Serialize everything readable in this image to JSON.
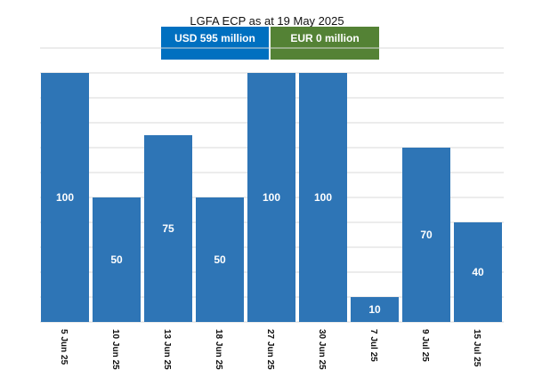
{
  "title": "LGFA ECP as at 19 May 2025",
  "legend": [
    {
      "label": "USD 595 million",
      "color": "#0070c0"
    },
    {
      "label": "EUR 0 million",
      "color": "#548235"
    }
  ],
  "chart_data": {
    "type": "bar",
    "title": "LGFA ECP as at 19 May 2025",
    "categories": [
      "5 Jun 25",
      "10 Jun 25",
      "13 Jun 25",
      "18 Jun 25",
      "27 Jun 25",
      "30 Jun 25",
      "7 Jul 25",
      "9 Jul 25",
      "15 Jul 25"
    ],
    "series": [
      {
        "name": "USD 595 million",
        "values": [
          100,
          50,
          75,
          50,
          100,
          100,
          10,
          70,
          40
        ],
        "color": "#2e75b6"
      }
    ],
    "ylim": [
      0,
      100
    ],
    "grid": true,
    "legend_position": "top"
  }
}
